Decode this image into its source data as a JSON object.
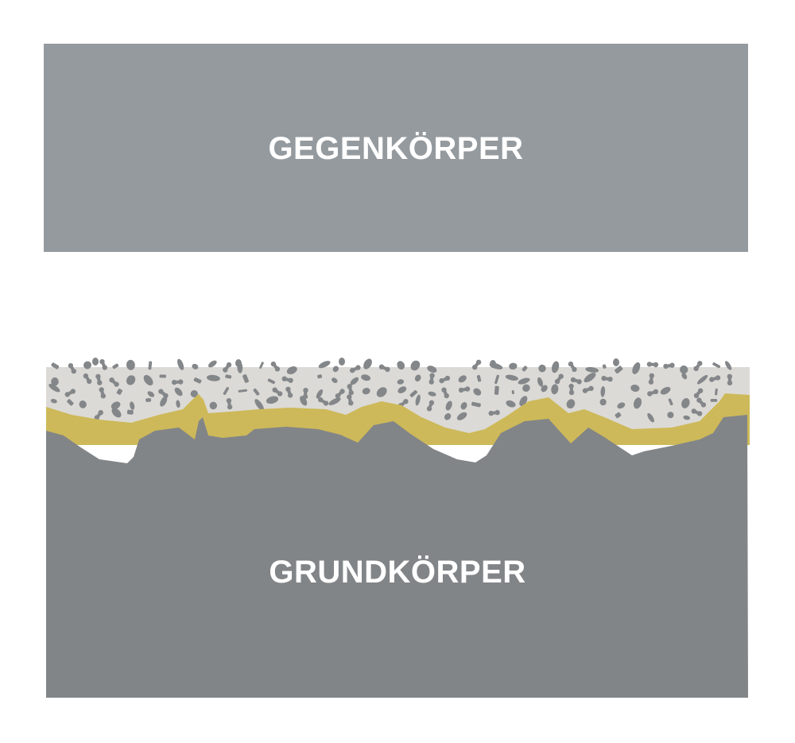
{
  "counter_body": {
    "label": "GEGENKÖRPER",
    "color": "#949a9e"
  },
  "base_body": {
    "label": "GRUNDKÖRPER",
    "color": "#828588"
  },
  "layers": {
    "interface_layer_color": "#cdb959",
    "particle_layer_color": "#dcdad6",
    "particle_color": "#84878a"
  }
}
